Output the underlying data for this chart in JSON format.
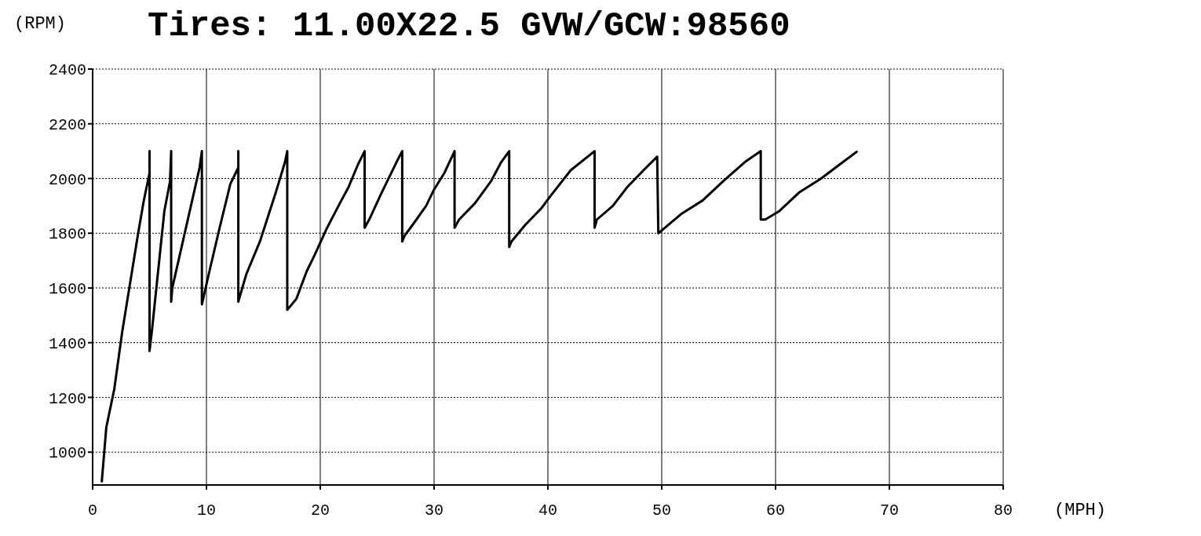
{
  "chart_data": {
    "type": "line",
    "title": "Tires: 11.00X22.5 GVW/GCW:98560",
    "xlabel": "(MPH)",
    "ylabel": "(RPM)",
    "xlim": [
      0,
      80
    ],
    "xticks": [
      0,
      10,
      20,
      30,
      40,
      50,
      60,
      70,
      80
    ],
    "ylim": [
      880,
      2400
    ],
    "yticks": [
      1000,
      1200,
      1400,
      1600,
      1800,
      2000,
      2200,
      2400
    ],
    "grid": true,
    "marker": "none",
    "line_style": "solid",
    "series": [
      {
        "color": "#000000",
        "x": [
          0.8,
          1.2,
          1.9,
          2.6,
          3.3,
          4.0,
          4.5,
          5.0,
          5.0,
          5.0,
          5.2,
          6.3,
          6.8,
          6.9,
          6.9,
          7.0,
          9.4,
          9.6,
          9.6,
          10.2,
          11.1,
          12.1,
          12.8,
          12.8,
          12.8,
          13.5,
          14.7,
          16.1,
          16.9,
          17.1,
          17.1,
          17.9,
          18.8,
          19.5,
          20.6,
          21.6,
          22.5,
          23.3,
          23.9,
          23.9,
          24.3,
          25.3,
          26.7,
          27.2,
          27.2,
          27.4,
          28.1,
          29.3,
          30.0,
          30.9,
          31.8,
          31.8,
          32.2,
          33.6,
          35.0,
          35.9,
          36.6,
          36.6,
          36.8,
          38.0,
          39.4,
          40.3,
          42.0,
          44.1,
          44.1,
          44.3,
          45.7,
          47.0,
          48.4,
          49.6,
          49.7,
          50.0,
          51.7,
          53.6,
          55.4,
          57.3,
          58.7,
          58.7,
          59.1,
          60.3,
          62.1,
          64.0,
          65.6,
          67.2
        ],
        "values": [
          890,
          1090,
          1230,
          1440,
          1620,
          1800,
          1920,
          2020,
          2100,
          1370,
          1440,
          1880,
          1990,
          2100,
          1550,
          1600,
          2040,
          2100,
          1540,
          1650,
          1810,
          1980,
          2040,
          2100,
          1550,
          1650,
          1770,
          1950,
          2060,
          2100,
          1520,
          1560,
          1660,
          1720,
          1820,
          1900,
          1970,
          2050,
          2100,
          1820,
          1850,
          1940,
          2060,
          2100,
          1770,
          1790,
          1830,
          1900,
          1960,
          2020,
          2100,
          1820,
          1850,
          1910,
          1990,
          2060,
          2100,
          1750,
          1770,
          1830,
          1890,
          1940,
          2030,
          2100,
          1820,
          1850,
          1900,
          1970,
          2030,
          2080,
          1800,
          1810,
          1870,
          1920,
          1990,
          2060,
          2100,
          1850,
          1850,
          1880,
          1950,
          2000,
          2050,
          2100
        ]
      }
    ]
  }
}
